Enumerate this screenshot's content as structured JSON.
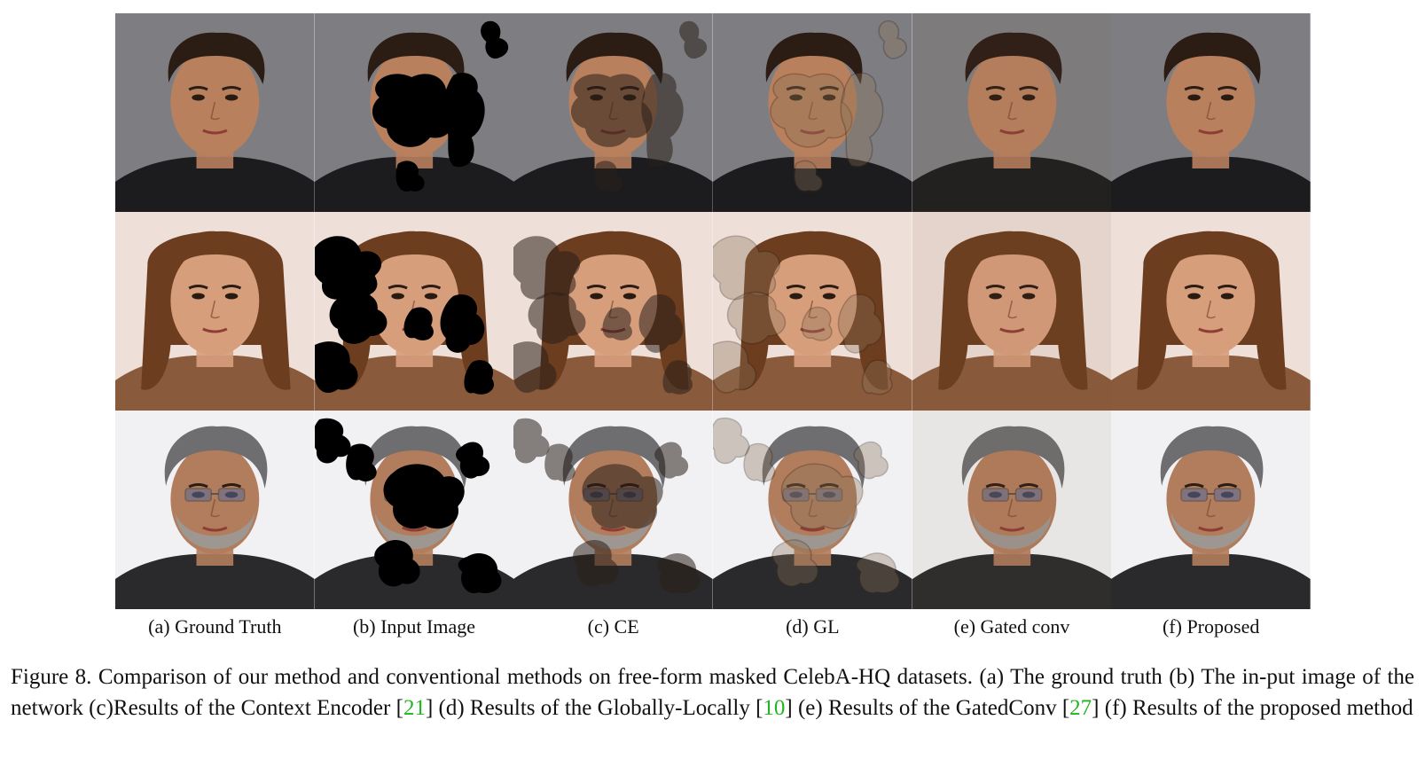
{
  "figure": {
    "columns": [
      {
        "key": "a",
        "label": "(a) Ground Truth"
      },
      {
        "key": "b",
        "label": "(b) Input Image"
      },
      {
        "key": "c",
        "label": "(c) CE"
      },
      {
        "key": "d",
        "label": "(d) GL"
      },
      {
        "key": "e",
        "label": "(e) Gated conv"
      },
      {
        "key": "f",
        "label": "(f) Proposed"
      }
    ],
    "rows": [
      {
        "subject": "man-dark-hair",
        "bg_color": "#7e7e82",
        "skin_color": "#b9805e",
        "hair_color": "#2b1c14",
        "shirt_color": "#1c1c1e",
        "glasses": false
      },
      {
        "subject": "woman-long-hair",
        "bg_color": "#eedfd8",
        "skin_color": "#d79e7c",
        "hair_color": "#6c3d1f",
        "shirt_color": "#8a5a3c",
        "glasses": false
      },
      {
        "subject": "man-grey-hair-glasses",
        "bg_color": "#f1f1f3",
        "skin_color": "#b27d5d",
        "hair_color": "#6e6e70",
        "shirt_color": "#2a2a2c",
        "glasses": true
      }
    ]
  },
  "caption": {
    "prefix": "Figure 8. Comparison of our method and conventional methods on free-form masked CelebA-HQ datasets. (a) The ground truth (b) The in-put image of the network (c)Results of the Context Encoder [",
    "ref1": "21",
    "mid1": "] (d) Results of the Globally-Locally [",
    "ref2": "10",
    "mid2": "] (e) Results of the GatedConv [",
    "ref3": "27",
    "suffix": "] (f) Results of the proposed method"
  }
}
